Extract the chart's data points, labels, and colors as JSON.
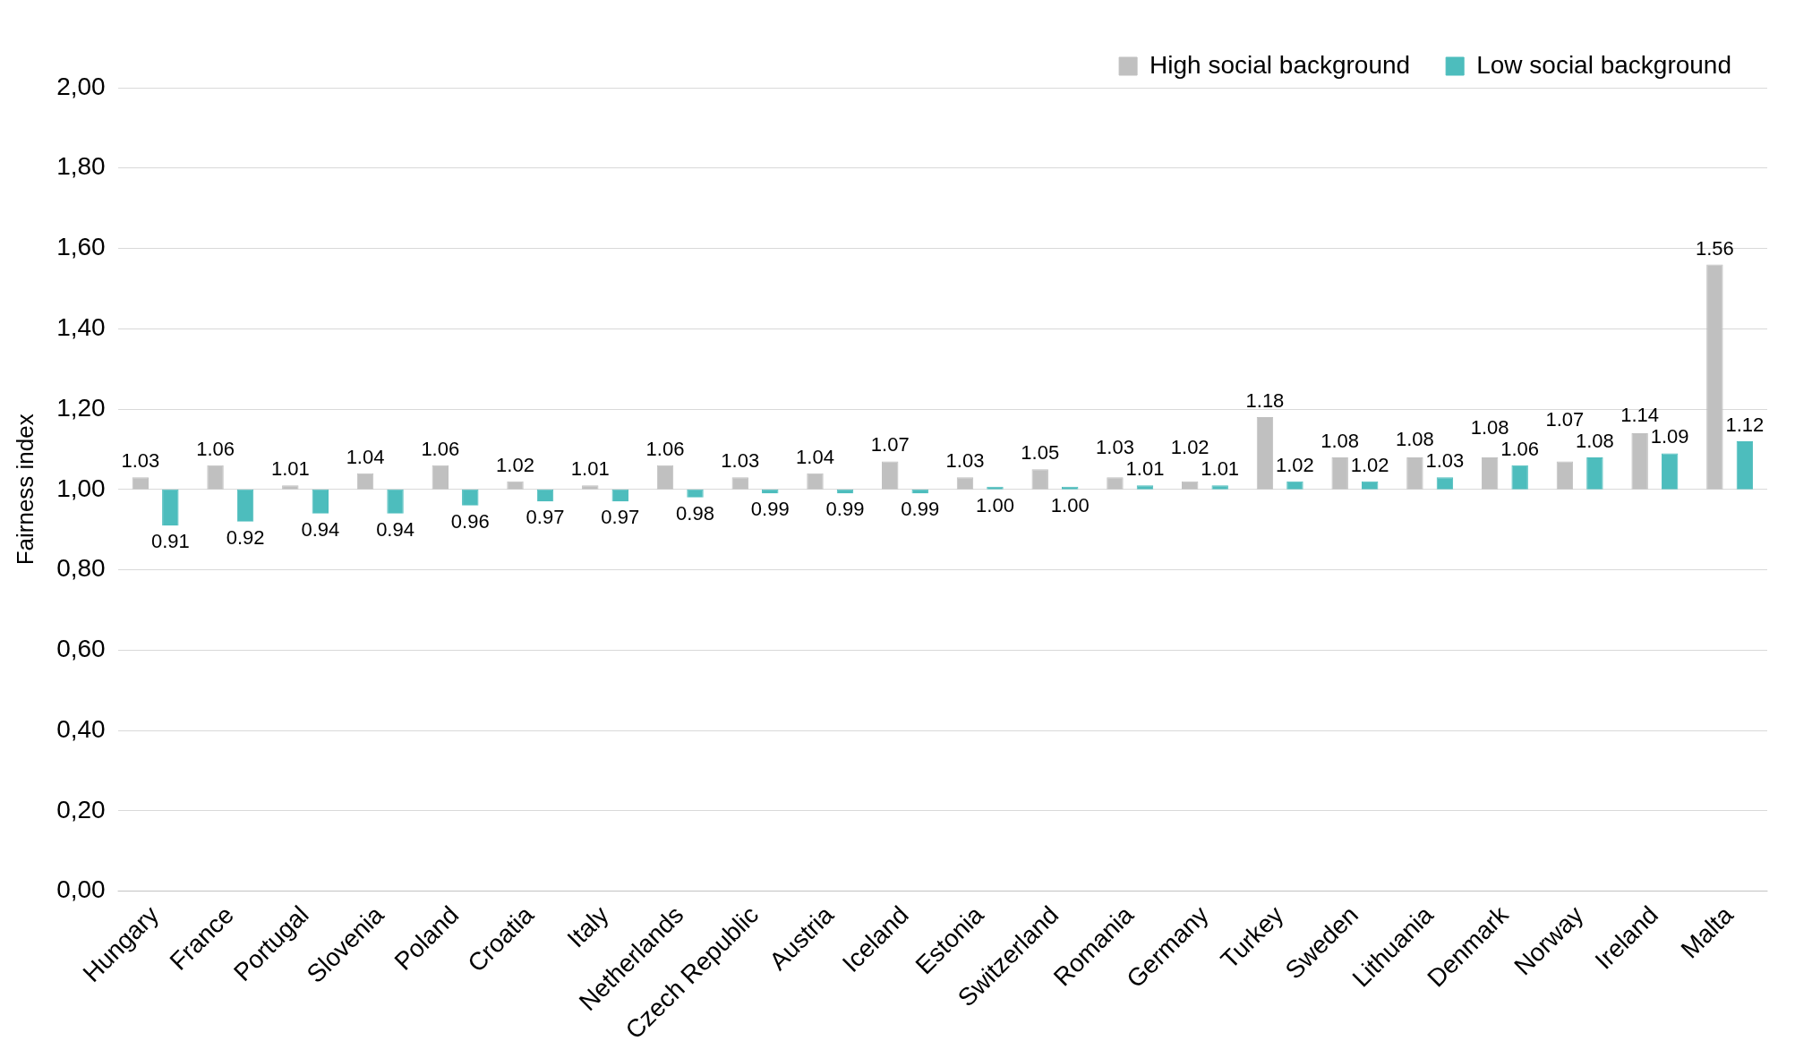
{
  "chart_data": {
    "type": "bar",
    "ylabel": "Fairness index",
    "categories": [
      "Hungary",
      "France",
      "Portugal",
      "Slovenia",
      "Poland",
      "Croatia",
      "Italy",
      "Netherlands",
      "Czech Republic",
      "Austria",
      "Iceland",
      "Estonia",
      "Switzerland",
      "Romania",
      "Germany",
      "Turkey",
      "Sweden",
      "Lithuania",
      "Denmark",
      "Norway",
      "Ireland",
      "Malta"
    ],
    "series": [
      {
        "name": "High social background",
        "color": "#c0c0c0",
        "base": [
          1,
          1,
          1,
          1,
          1,
          1,
          1,
          1,
          1,
          1,
          1,
          1,
          1,
          1,
          1,
          1,
          1,
          1,
          1,
          1,
          1,
          1
        ],
        "values": [
          0.03,
          0.06,
          0.01,
          0.04,
          0.06,
          0.02,
          0.01,
          0.06,
          0.03,
          0.04,
          0.07,
          0.03,
          0.05,
          0.03,
          0.02,
          0.18,
          0.08,
          0.08,
          0.08,
          0.07,
          0.14,
          0.56
        ],
        "value_labels": [
          "1.03",
          "1.06",
          "1.01",
          "1.04",
          "1.06",
          "1.02",
          "1.01",
          "1.06",
          "1.03",
          "1.04",
          "1.07",
          "1.03",
          "1.05",
          "1.03",
          "1.02",
          "1.18",
          "1.08",
          "1.08",
          "1.08",
          "1.07",
          "1.14",
          "1.56"
        ]
      },
      {
        "name": "Low social background",
        "color": "#4dbdbd",
        "base": [
          1,
          1,
          1,
          1,
          1,
          1,
          1,
          1,
          1,
          1,
          1,
          1,
          1,
          1,
          1,
          1,
          1,
          1,
          1,
          1,
          1,
          1
        ],
        "values": [
          -0.09,
          -0.08,
          -0.06,
          -0.06,
          -0.04,
          -0.03,
          -0.03,
          -0.02,
          -0.01,
          -0.01,
          -0.01,
          0,
          0,
          0.01,
          0.01,
          0.02,
          0.02,
          0.03,
          0.06,
          0.08,
          0.09,
          0.12
        ],
        "value_labels": [
          "0.91",
          "0.92",
          "0.94",
          "0.94",
          "0.96",
          "0.97",
          "0.97",
          "0.98",
          "0.99",
          "0.99",
          "0.99",
          "1.00",
          "1.00",
          "1.01",
          "1.01",
          "1.02",
          "1.02",
          "1.03",
          "1.06",
          "1.08",
          "1.09",
          "1.12"
        ]
      }
    ],
    "ylim": [
      0,
      2
    ],
    "yticks": [
      {
        "value": 0,
        "label": "0,00"
      },
      {
        "value": 0.2,
        "label": "0,20"
      },
      {
        "value": 0.4,
        "label": "0,40"
      },
      {
        "value": 0.6,
        "label": "0,60"
      },
      {
        "value": 0.8,
        "label": "0,80"
      },
      {
        "value": 1,
        "label": "1,00"
      },
      {
        "value": 1.2,
        "label": "1,20"
      },
      {
        "value": 1.4,
        "label": "1,40"
      },
      {
        "value": 1.6,
        "label": "1,60"
      },
      {
        "value": 1.8,
        "label": "1,80"
      },
      {
        "value": 2,
        "label": "2,00"
      }
    ],
    "grid": "y",
    "legend": "top right"
  }
}
